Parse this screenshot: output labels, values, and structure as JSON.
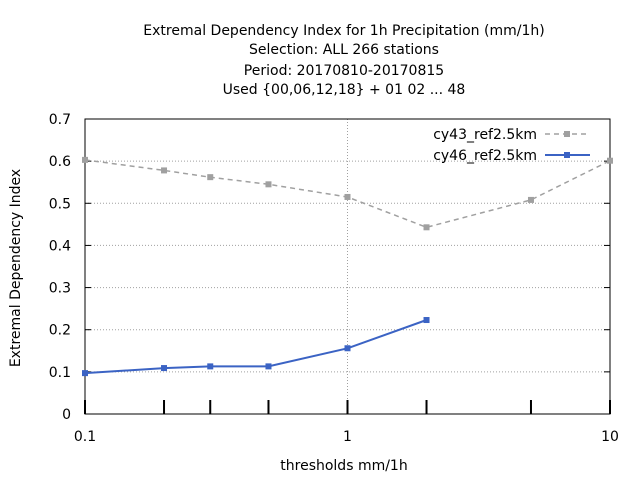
{
  "chart_data": {
    "type": "line",
    "title_lines": [
      "Extremal Dependency Index  for 1h Precipitation (mm/1h)",
      "Selection: ALL    266 stations",
      "Period: 20170810-20170815",
      "Used {00,06,12,18} + 01 02 ... 48"
    ],
    "xlabel": "thresholds mm/1h",
    "ylabel": "Extremal Dependency Index",
    "x_scale": "log",
    "xlim": [
      0.1,
      10
    ],
    "ylim": [
      0,
      0.7
    ],
    "x_ticks": [
      0.1,
      1,
      10
    ],
    "x_tick_labels": [
      "0.1",
      "1",
      "10"
    ],
    "x_minor_ticks": [
      0.2,
      0.3,
      0.5,
      2,
      5
    ],
    "y_ticks": [
      0,
      0.1,
      0.2,
      0.3,
      0.4,
      0.5,
      0.6,
      0.7
    ],
    "y_tick_labels": [
      "0",
      "0.1",
      "0.2",
      "0.3",
      "0.4",
      "0.5",
      "0.6",
      "0.7"
    ],
    "grid": true,
    "legend_position": "top-right",
    "series": [
      {
        "name": "cy43_ref2.5km",
        "color": "#a0a0a0",
        "dashed": true,
        "x": [
          0.1,
          0.2,
          0.3,
          0.5,
          1,
          2,
          5,
          10
        ],
        "y": [
          0.603,
          0.578,
          0.562,
          0.545,
          0.515,
          0.443,
          0.508,
          0.601
        ]
      },
      {
        "name": "cy46_ref2.5km",
        "color": "#3b63c4",
        "dashed": false,
        "x": [
          0.1,
          0.2,
          0.3,
          0.5,
          1,
          2
        ],
        "y": [
          0.097,
          0.109,
          0.113,
          0.113,
          0.156,
          0.223
        ]
      }
    ]
  }
}
